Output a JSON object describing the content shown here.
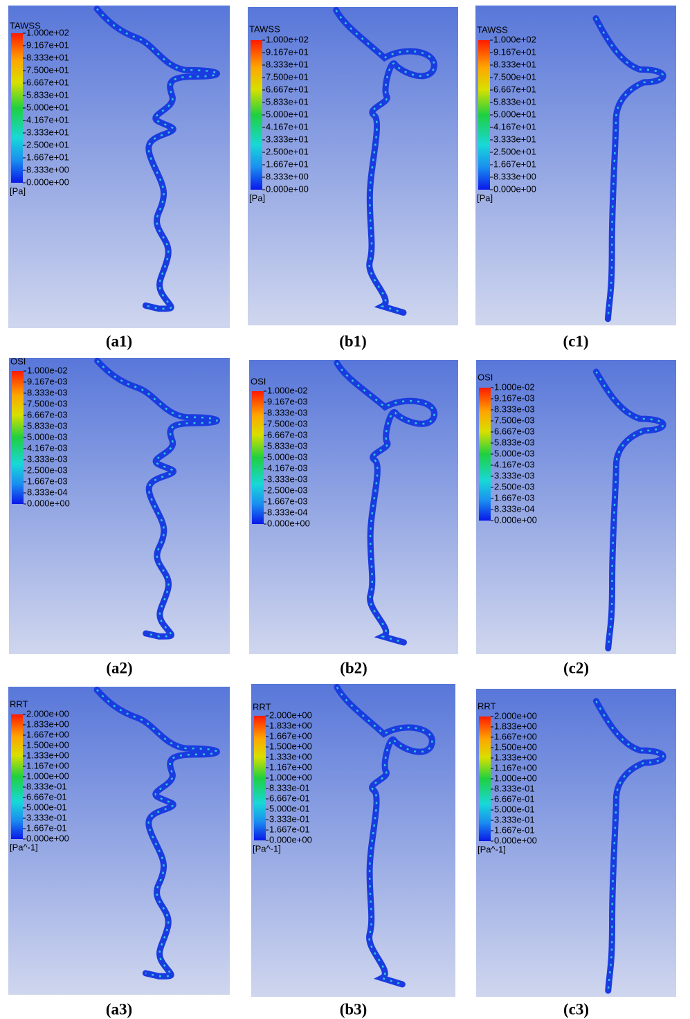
{
  "panels": [
    {
      "label": "(a1)",
      "legend": {
        "title": "TAWSS",
        "ticks": [
          "1.000e+02",
          "9.167e+01",
          "8.333e+01",
          "7.500e+01",
          "6.667e+01",
          "5.833e+01",
          "5.000e+01",
          "4.167e+01",
          "3.333e+01",
          "2.500e+01",
          "1.667e+01",
          "8.333e+00",
          "0.000e+00"
        ],
        "unit": "[Pa]"
      }
    },
    {
      "label": "(b1)",
      "legend": {
        "title": "TAWSS",
        "ticks": [
          "1.000e+02",
          "9.167e+01",
          "8.333e+01",
          "7.500e+01",
          "6.667e+01",
          "5.833e+01",
          "5.000e+01",
          "4.167e+01",
          "3.333e+01",
          "2.500e+01",
          "1.667e+01",
          "8.333e+00",
          "0.000e+00"
        ],
        "unit": "[Pa]"
      }
    },
    {
      "label": "(c1)",
      "legend": {
        "title": "TAWSS",
        "ticks": [
          "1.000e+02",
          "9.167e+01",
          "8.333e+01",
          "7.500e+01",
          "6.667e+01",
          "5.833e+01",
          "5.000e+01",
          "4.167e+01",
          "3.333e+01",
          "2.500e+01",
          "1.667e+01",
          "8.333e+00",
          "0.000e+00"
        ],
        "unit": "[Pa]"
      }
    },
    {
      "label": "(a2)",
      "legend": {
        "title": "OSI",
        "ticks": [
          "1.000e-02",
          "9.167e-03",
          "8.333e-03",
          "7.500e-03",
          "6.667e-03",
          "5.833e-03",
          "5.000e-03",
          "4.167e-03",
          "3.333e-03",
          "2.500e-03",
          "1.667e-03",
          "8.333e-04",
          "0.000e+00"
        ]
      }
    },
    {
      "label": "(b2)",
      "legend": {
        "title": "OSI",
        "ticks": [
          "1.000e-02",
          "9.167e-03",
          "8.333e-03",
          "7.500e-03",
          "6.667e-03",
          "5.833e-03",
          "5.000e-03",
          "4.167e-03",
          "3.333e-03",
          "2.500e-03",
          "1.667e-03",
          "8.333e-04",
          "0.000e+00"
        ]
      }
    },
    {
      "label": "(c2)",
      "legend": {
        "title": "OSI",
        "ticks": [
          "1.000e-02",
          "9.167e-03",
          "8.333e-03",
          "7.500e-03",
          "6.667e-03",
          "5.833e-03",
          "5.000e-03",
          "4.167e-03",
          "3.333e-03",
          "2.500e-03",
          "1.667e-03",
          "8.333e-04",
          "0.000e+00"
        ]
      }
    },
    {
      "label": "(a3)",
      "legend": {
        "title": "RRT",
        "ticks": [
          "2.000e+00",
          "1.833e+00",
          "1.667e+00",
          "1.500e+00",
          "1.333e+00",
          "1.167e+00",
          "1.000e+00",
          "8.333e-01",
          "6.667e-01",
          "5.000e-01",
          "3.333e-01",
          "1.667e-01",
          "0.000e+00"
        ],
        "unit": "[Pa^-1]"
      }
    },
    {
      "label": "(b3)",
      "legend": {
        "title": "RRT",
        "ticks": [
          "2.000e+00",
          "1.833e+00",
          "1.667e+00",
          "1.500e+00",
          "1.333e+00",
          "1.167e+00",
          "1.000e+00",
          "8.333e-01",
          "6.667e-01",
          "5.000e-01",
          "3.333e-01",
          "1.667e-01",
          "0.000e+00"
        ],
        "unit": "[Pa^-1]"
      }
    },
    {
      "label": "(c3)",
      "legend": {
        "title": "RRT",
        "ticks": [
          "2.000e+00",
          "1.833e+00",
          "1.667e+00",
          "1.500e+00",
          "1.333e+00",
          "1.167e+00",
          "1.000e+00",
          "8.333e-01",
          "6.667e-01",
          "5.000e-01",
          "3.333e-01",
          "1.667e-01",
          "0.000e+00"
        ],
        "unit": "[Pa^-1]"
      }
    }
  ]
}
